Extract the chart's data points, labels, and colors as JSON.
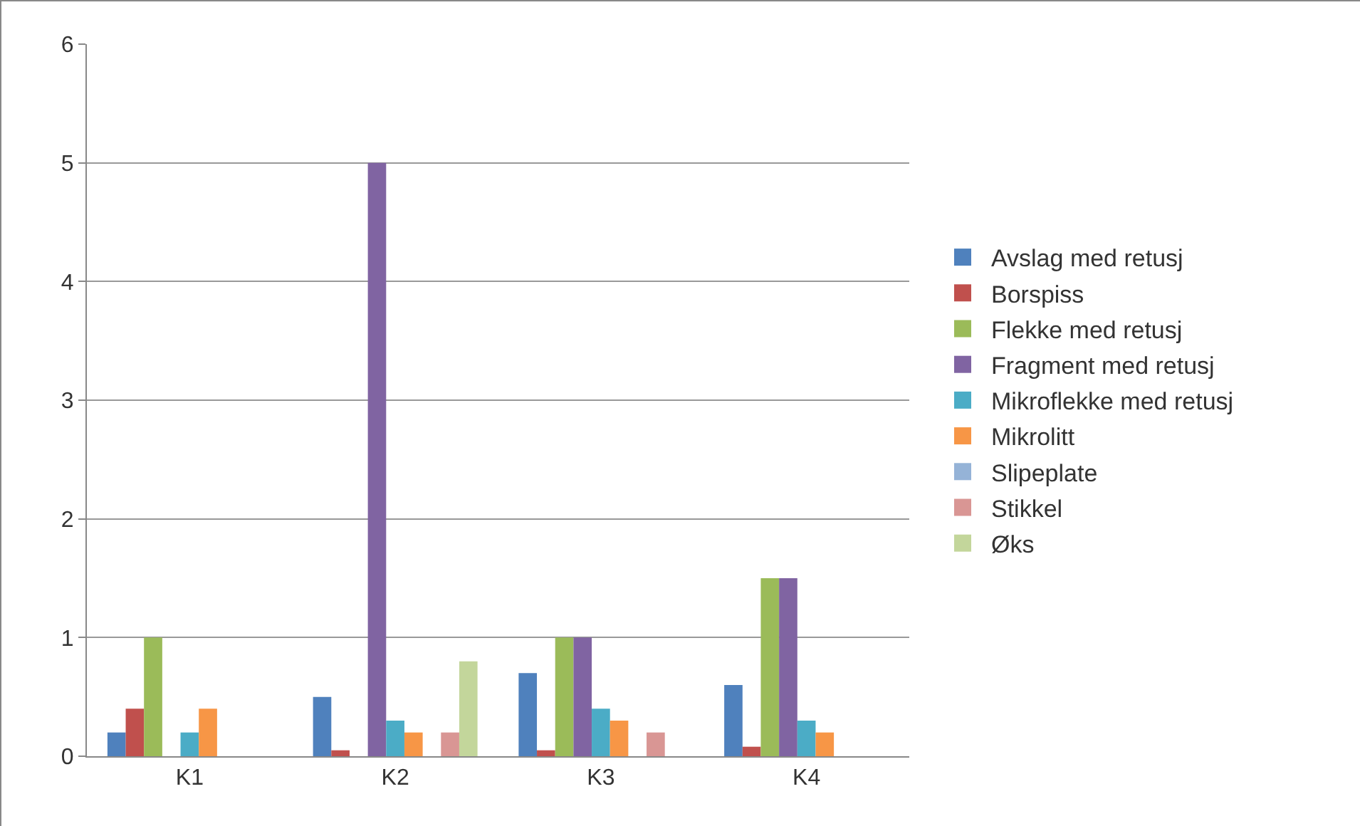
{
  "chart_data": {
    "type": "bar",
    "categories": [
      "K1",
      "K2",
      "K3",
      "K4"
    ],
    "series": [
      {
        "name": "Avslag med retusj",
        "color": "#4f81bd",
        "values": [
          0.2,
          0.5,
          0.7,
          0.6
        ]
      },
      {
        "name": "Borspiss",
        "color": "#c0504d",
        "values": [
          0.4,
          0.05,
          0.05,
          0.08
        ]
      },
      {
        "name": "Flekke med retusj",
        "color": "#9bbb59",
        "values": [
          1,
          null,
          1,
          1.5
        ]
      },
      {
        "name": "Fragment med retusj",
        "color": "#8064a2",
        "values": [
          null,
          5,
          1,
          1.5
        ]
      },
      {
        "name": "Mikroflekke med retusj",
        "color": "#4bacc6",
        "values": [
          0.2,
          0.3,
          0.4,
          0.3
        ]
      },
      {
        "name": "Mikrolitt",
        "color": "#f79646",
        "values": [
          0.4,
          0.2,
          0.3,
          0.2
        ]
      },
      {
        "name": "Slipeplate",
        "color": "#95b3d7",
        "values": [
          null,
          null,
          null,
          null
        ]
      },
      {
        "name": "Stikkel",
        "color": "#d99694",
        "values": [
          null,
          0.2,
          0.2,
          null
        ]
      },
      {
        "name": "Øks",
        "color": "#c3d69b",
        "values": [
          null,
          0.8,
          null,
          null
        ]
      }
    ],
    "ylim": [
      0,
      6
    ],
    "yticks": [
      0,
      1,
      2,
      3,
      4,
      5,
      6
    ],
    "grid": "y",
    "legend": "right"
  }
}
